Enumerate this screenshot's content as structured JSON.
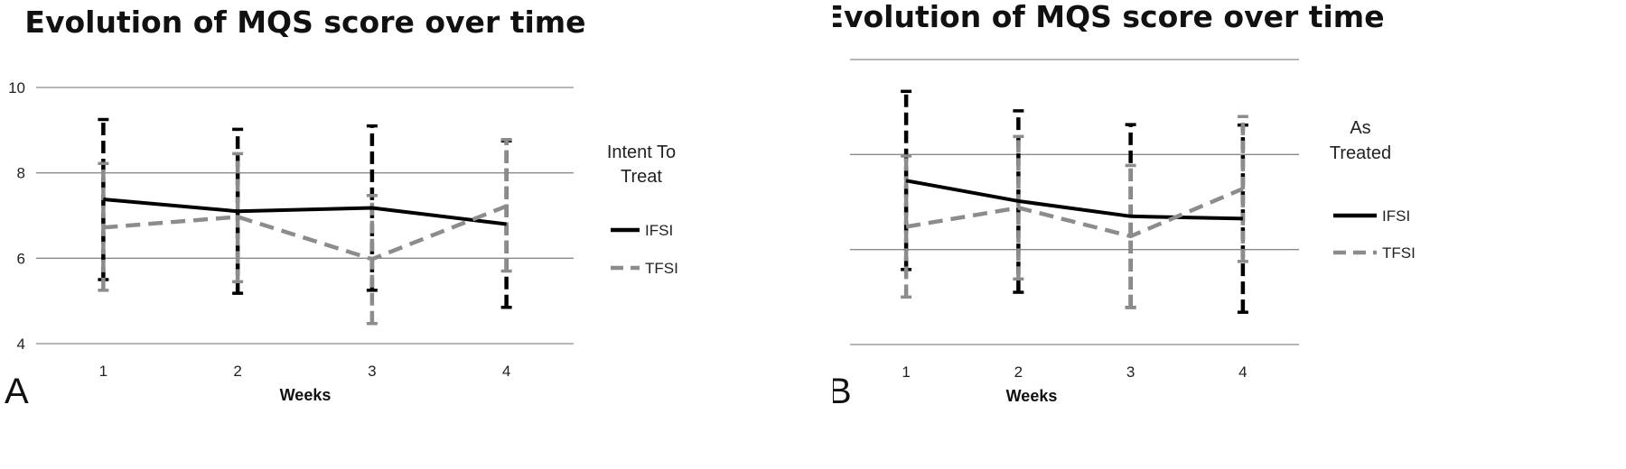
{
  "chart_data": [
    {
      "type": "line",
      "panel_letter": "A",
      "title": "Evolution of MQS score over time",
      "xlabel": "Weeks",
      "ylabel": "",
      "ylim": [
        4,
        10
      ],
      "yticks": [
        4,
        6,
        8,
        10
      ],
      "categories": [
        "1",
        "2",
        "3",
        "4"
      ],
      "grid": true,
      "legend_position": "right",
      "legend_title": [
        "Intent To",
        "Treat"
      ],
      "series": [
        {
          "name": "IFSI",
          "style": "solid",
          "color": "#000000",
          "values": [
            7.38,
            7.1,
            7.18,
            6.8
          ],
          "error_low": [
            5.5,
            5.18,
            5.25,
            4.85
          ],
          "error_high": [
            9.25,
            9.02,
            9.1,
            8.75
          ]
        },
        {
          "name": "TFSI",
          "style": "dashed",
          "color": "#8c8c8c",
          "values": [
            6.72,
            6.97,
            5.98,
            7.22
          ],
          "error_low": [
            5.25,
            5.45,
            4.47,
            5.7
          ],
          "error_high": [
            8.22,
            8.45,
            7.47,
            8.78
          ]
        }
      ]
    },
    {
      "type": "line",
      "panel_letter": "B",
      "title": "Evolution of MQS score over time",
      "xlabel": "Weeks",
      "ylabel": "",
      "ylim": [
        4,
        10
      ],
      "yticks": [
        4,
        6,
        8,
        10
      ],
      "categories": [
        "1",
        "2",
        "3",
        "4"
      ],
      "grid": true,
      "legend_position": "right",
      "legend_title": [
        "As",
        "Treated"
      ],
      "series": [
        {
          "name": "IFSI",
          "style": "solid",
          "color": "#000000",
          "values": [
            7.45,
            7.02,
            6.7,
            6.65
          ],
          "error_low": [
            5.58,
            5.1,
            4.78,
            4.68
          ],
          "error_high": [
            9.33,
            8.92,
            8.63,
            8.62
          ]
        },
        {
          "name": "TFSI",
          "style": "dashed",
          "color": "#8c8c8c",
          "values": [
            6.48,
            6.88,
            6.28,
            7.28
          ],
          "error_low": [
            5.0,
            5.38,
            4.78,
            5.75
          ],
          "error_high": [
            7.97,
            8.38,
            7.77,
            8.8
          ]
        }
      ]
    }
  ]
}
